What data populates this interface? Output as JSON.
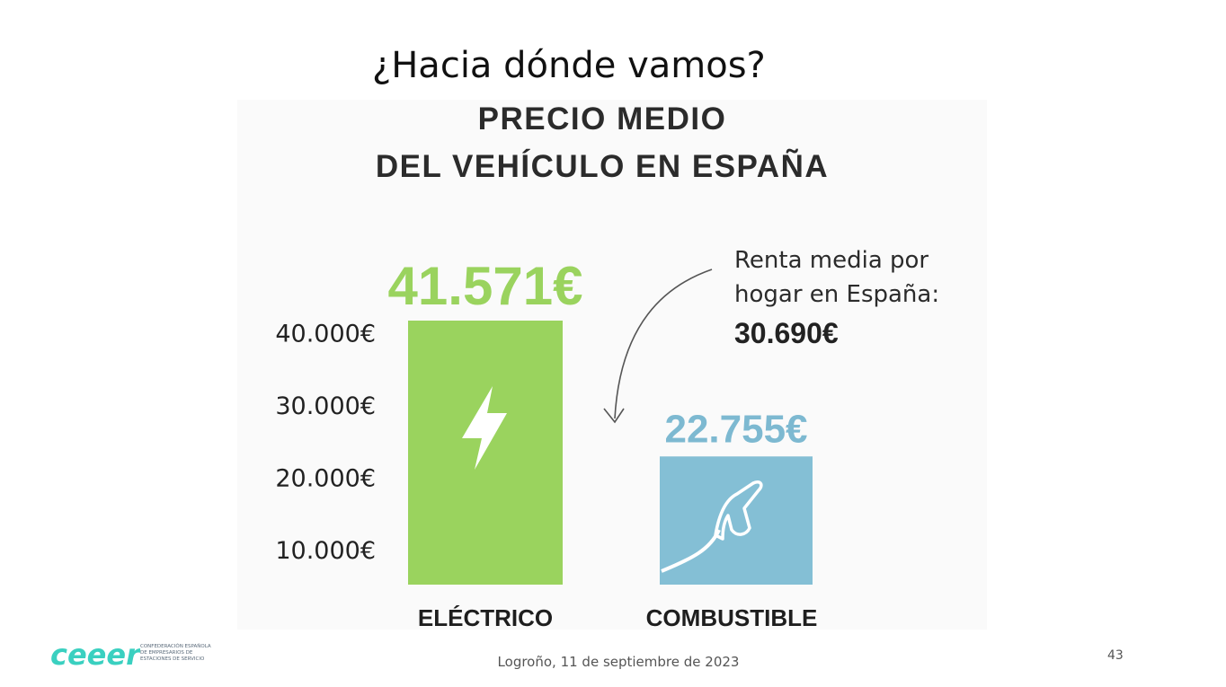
{
  "slide": {
    "title": "¿Hacia dónde vamos?",
    "footer_date": "Logroño, 11 de septiembre de 2023",
    "page_number": "43"
  },
  "logo": {
    "wordmark": "ceeer",
    "subtitle": "CONFEDERACIÓN ESPAÑOLA\nDE EMPRESARIOS DE\nESTACIONES DE SERVICIO",
    "color": "#3ad0c0"
  },
  "chart_data": {
    "type": "bar",
    "title": "PRECIO MEDIO\nDEL VEHÍCULO EN ESPAÑA",
    "title_lines": [
      "PRECIO MEDIO",
      "DEL VEHÍCULO EN ESPAÑA"
    ],
    "categories": [
      "ELÉCTRICO",
      "COMBUSTIBLE"
    ],
    "values": [
      41571,
      22755
    ],
    "value_labels": [
      "41.571€",
      "22.755€"
    ],
    "colors": [
      "#9ad35e",
      "#84bfd5"
    ],
    "icons": [
      "lightning-bolt-icon",
      "fuel-nozzle-icon"
    ],
    "y_ticks": [
      {
        "value": 10000,
        "label": "10.000€"
      },
      {
        "value": 20000,
        "label": "20.000€"
      },
      {
        "value": 30000,
        "label": "30.000€"
      },
      {
        "value": 40000,
        "label": "40.000€"
      }
    ],
    "ylim": [
      5000,
      41571
    ],
    "annotation": {
      "lines": [
        "Renta media por",
        "hogar en España:"
      ],
      "value_label": "30.690€",
      "value": 30690
    }
  }
}
